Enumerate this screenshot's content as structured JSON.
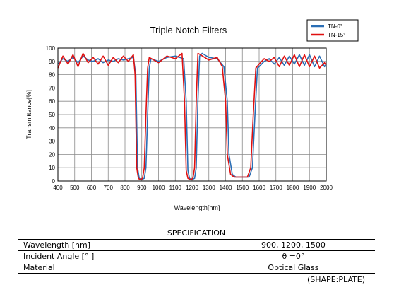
{
  "chart_data": {
    "type": "line",
    "title": "Triple Notch Filters",
    "xlabel": "Wavelength[nm]",
    "ylabel": "Transmittance[%]",
    "xlim": [
      400,
      2000
    ],
    "ylim": [
      0,
      100
    ],
    "x_ticks": [
      400,
      500,
      600,
      700,
      800,
      900,
      1000,
      1100,
      1200,
      1300,
      1400,
      1500,
      1600,
      1700,
      1800,
      1900,
      2000
    ],
    "y_ticks": [
      0,
      10,
      20,
      30,
      40,
      50,
      60,
      70,
      80,
      90,
      100
    ],
    "grid": true,
    "legend": "top-right",
    "series": [
      {
        "name": "TN-0°",
        "color": "#2a6eb5",
        "x": [
          400,
          430,
          460,
          490,
          520,
          550,
          580,
          610,
          640,
          670,
          700,
          730,
          760,
          790,
          820,
          850,
          865,
          875,
          885,
          900,
          915,
          925,
          935,
          945,
          955,
          1000,
          1050,
          1100,
          1150,
          1165,
          1175,
          1185,
          1200,
          1215,
          1225,
          1235,
          1245,
          1260,
          1300,
          1350,
          1390,
          1410,
          1420,
          1440,
          1460,
          1500,
          1540,
          1560,
          1575,
          1590,
          1600,
          1630,
          1660,
          1690,
          1720,
          1750,
          1780,
          1810,
          1840,
          1870,
          1900,
          1930,
          1960,
          1990,
          2000
        ],
        "y": [
          88,
          92,
          90,
          93,
          89,
          94,
          91,
          90,
          92,
          89,
          91,
          90,
          92,
          91,
          92,
          93,
          80,
          10,
          2,
          1,
          2,
          10,
          50,
          85,
          92,
          90,
          93,
          94,
          92,
          60,
          8,
          2,
          1,
          2,
          10,
          60,
          94,
          96,
          93,
          92,
          86,
          60,
          20,
          5,
          3,
          3,
          3,
          10,
          50,
          85,
          86,
          90,
          92,
          88,
          93,
          87,
          94,
          88,
          95,
          87,
          95,
          86,
          94,
          86,
          88
        ]
      },
      {
        "name": "TN-15°",
        "color": "#e01010",
        "x": [
          400,
          430,
          460,
          490,
          520,
          550,
          580,
          610,
          640,
          670,
          700,
          730,
          760,
          790,
          820,
          850,
          860,
          870,
          880,
          890,
          905,
          915,
          925,
          935,
          945,
          1000,
          1050,
          1100,
          1140,
          1155,
          1165,
          1175,
          1190,
          1205,
          1215,
          1225,
          1235,
          1250,
          1300,
          1350,
          1380,
          1400,
          1410,
          1430,
          1450,
          1490,
          1530,
          1550,
          1565,
          1580,
          1600,
          1630,
          1660,
          1690,
          1720,
          1750,
          1780,
          1810,
          1840,
          1870,
          1900,
          1930,
          1960,
          1990,
          2000
        ],
        "y": [
          85,
          94,
          88,
          95,
          86,
          96,
          89,
          93,
          88,
          94,
          87,
          93,
          89,
          94,
          90,
          95,
          80,
          10,
          2,
          1,
          2,
          10,
          50,
          85,
          93,
          89,
          94,
          92,
          96,
          60,
          8,
          2,
          1,
          2,
          10,
          60,
          96,
          95,
          91,
          93,
          86,
          60,
          20,
          5,
          3,
          3,
          3,
          10,
          50,
          85,
          88,
          92,
          90,
          93,
          86,
          94,
          87,
          95,
          86,
          95,
          86,
          94,
          85,
          89,
          87
        ]
      }
    ]
  },
  "spec": {
    "title": "SPECIFICATION",
    "rows": [
      {
        "label": "Wavelength  [nm]",
        "value": "900,  1200,  1500"
      },
      {
        "label": "Incident Angle  [°  ]",
        "value": "θ =0°"
      },
      {
        "label": "Material",
        "value": "Optical Glass"
      }
    ],
    "shape_note": "(SHAPE:PLATE)"
  }
}
